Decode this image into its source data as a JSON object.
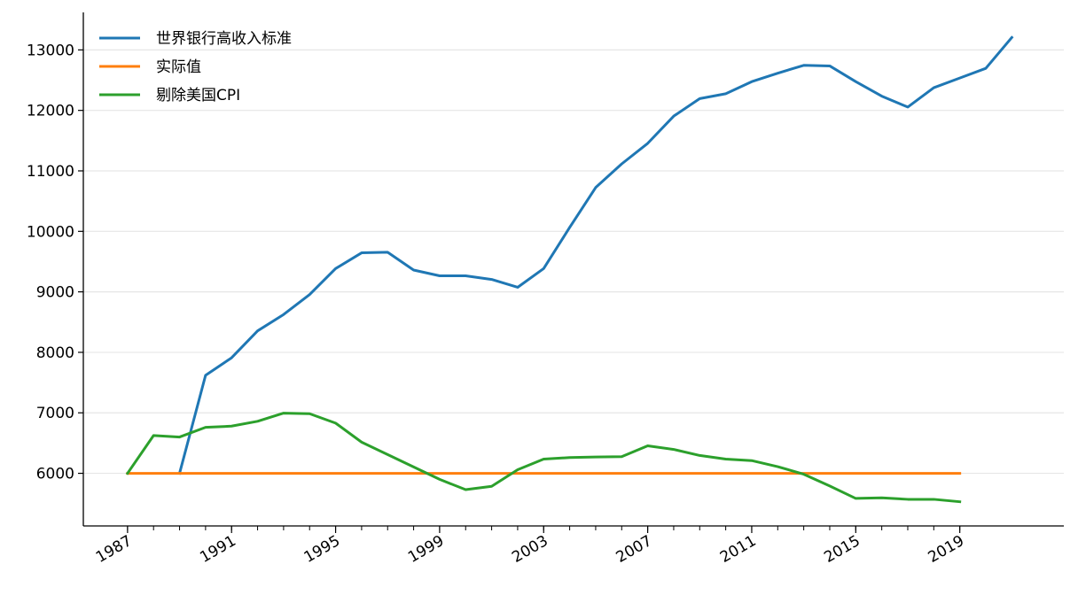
{
  "chart_data": {
    "type": "line",
    "title": "",
    "xlabel": "",
    "ylabel": "",
    "xlim": [
      1985.3,
      2023.0
    ],
    "ylim": [
      5130,
      13620
    ],
    "x_ticks": [
      1987,
      1991,
      1995,
      1999,
      2003,
      2007,
      2011,
      2015,
      2019
    ],
    "x_minor_ticks": [
      1987,
      1988,
      1989,
      1990,
      1991,
      1992,
      1993,
      1994,
      1995,
      1996,
      1997,
      1998,
      1999,
      2000,
      2001,
      2002,
      2003,
      2004,
      2005,
      2006,
      2007,
      2008,
      2009,
      2010,
      2011,
      2012,
      2013,
      2014,
      2015,
      2016,
      2017,
      2018,
      2019
    ],
    "y_ticks": [
      6000,
      7000,
      8000,
      9000,
      10000,
      11000,
      12000,
      13000
    ],
    "grid": "horizontal",
    "legend_position": "top-left",
    "series": [
      {
        "name": "世界银行高收入标准",
        "color": "#1f77b4",
        "x": [
          1989,
          1990,
          1991,
          1992,
          1993,
          1994,
          1995,
          1996,
          1997,
          1998,
          1999,
          2000,
          2001,
          2002,
          2003,
          2004,
          2005,
          2006,
          2007,
          2008,
          2009,
          2010,
          2011,
          2012,
          2013,
          2014,
          2015,
          2016,
          2017,
          2018,
          2019,
          2020,
          2021
        ],
        "values": [
          6000,
          7620,
          7910,
          8355,
          8625,
          8955,
          9385,
          9645,
          9655,
          9360,
          9265,
          9265,
          9205,
          9075,
          9385,
          10065,
          10725,
          11115,
          11455,
          11905,
          12195,
          12275,
          12475,
          12615,
          12745,
          12735,
          12475,
          12235,
          12055,
          12375,
          12535,
          12695,
          13205
        ]
      },
      {
        "name": "实际值",
        "color": "#ff7f0e",
        "x": [
          1987,
          1988,
          1989,
          1990,
          1991,
          1992,
          1993,
          1994,
          1995,
          1996,
          1997,
          1998,
          1999,
          2000,
          2001,
          2002,
          2003,
          2004,
          2005,
          2006,
          2007,
          2008,
          2009,
          2010,
          2011,
          2012,
          2013,
          2014,
          2015,
          2016,
          2017,
          2018,
          2019
        ],
        "values": [
          6000,
          6000,
          6000,
          6000,
          6000,
          6000,
          6000,
          6000,
          6000,
          6000,
          6000,
          6000,
          6000,
          6000,
          6000,
          6000,
          6000,
          6000,
          6000,
          6000,
          6000,
          6000,
          6000,
          6000,
          6000,
          6000,
          6000,
          6000,
          6000,
          6000,
          6000,
          6000,
          6000
        ]
      },
      {
        "name": "剔除美国CPI",
        "color": "#2ca02c",
        "x": [
          1987,
          1988,
          1989,
          1990,
          1991,
          1992,
          1993,
          1994,
          1995,
          1996,
          1997,
          1998,
          1999,
          2000,
          2001,
          2002,
          2003,
          2004,
          2005,
          2006,
          2007,
          2008,
          2009,
          2010,
          2011,
          2012,
          2013,
          2014,
          2015,
          2016,
          2017,
          2018,
          2019
        ],
        "values": [
          6000,
          6625,
          6600,
          6760,
          6780,
          6860,
          6995,
          6985,
          6830,
          6515,
          6310,
          6105,
          5900,
          5730,
          5785,
          6060,
          6235,
          6260,
          6270,
          6275,
          6455,
          6395,
          6295,
          6235,
          6210,
          6110,
          5985,
          5790,
          5585,
          5595,
          5570,
          5570,
          5530
        ]
      }
    ]
  }
}
